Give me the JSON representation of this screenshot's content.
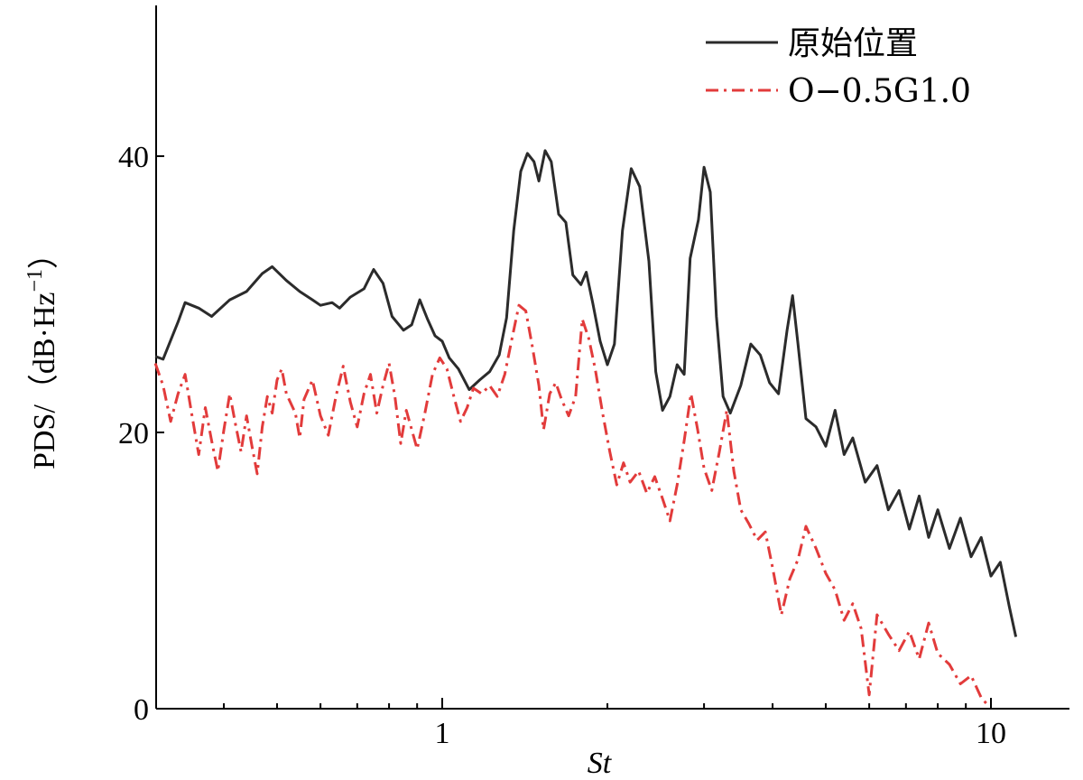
{
  "chart_data": {
    "type": "line",
    "title": "",
    "xlabel": "St",
    "ylabel": "PDS/（dB·Hz",
    "ylabel_sup": "−1",
    "ylabel_close": "）",
    "x_scale": "log",
    "xlim": [
      0.3,
      15
    ],
    "ylim": [
      0,
      40
    ],
    "x_ticks": [
      {
        "value": 1,
        "label": "1"
      },
      {
        "value": 10,
        "label": "10"
      }
    ],
    "y_ticks": [
      {
        "value": 0,
        "label": "0"
      },
      {
        "value": 20,
        "label": "20"
      },
      {
        "value": 40,
        "label": "40"
      }
    ],
    "grid": false,
    "legend_position": "top-right",
    "series": [
      {
        "name": "原始位置",
        "color": "#2b2b2b",
        "style": "solid",
        "points": [
          [
            0.3,
            25.5
          ],
          [
            0.31,
            25.3
          ],
          [
            0.33,
            28.0
          ],
          [
            0.34,
            29.4
          ],
          [
            0.36,
            29.0
          ],
          [
            0.38,
            28.4
          ],
          [
            0.41,
            29.6
          ],
          [
            0.44,
            30.2
          ],
          [
            0.47,
            31.5
          ],
          [
            0.49,
            32.0
          ],
          [
            0.52,
            31.0
          ],
          [
            0.55,
            30.2
          ],
          [
            0.58,
            29.6
          ],
          [
            0.6,
            29.2
          ],
          [
            0.63,
            29.4
          ],
          [
            0.65,
            29.0
          ],
          [
            0.68,
            29.8
          ],
          [
            0.72,
            30.4
          ],
          [
            0.75,
            31.8
          ],
          [
            0.78,
            30.8
          ],
          [
            0.81,
            28.4
          ],
          [
            0.85,
            27.4
          ],
          [
            0.88,
            27.8
          ],
          [
            0.91,
            29.6
          ],
          [
            0.94,
            28.2
          ],
          [
            0.97,
            27.0
          ],
          [
            1.0,
            26.6
          ],
          [
            1.03,
            25.4
          ],
          [
            1.07,
            24.6
          ],
          [
            1.12,
            23.1
          ],
          [
            1.17,
            23.8
          ],
          [
            1.22,
            24.4
          ],
          [
            1.27,
            25.6
          ],
          [
            1.31,
            28.3
          ],
          [
            1.35,
            34.6
          ],
          [
            1.39,
            38.9
          ],
          [
            1.43,
            40.2
          ],
          [
            1.47,
            39.6
          ],
          [
            1.5,
            38.2
          ],
          [
            1.54,
            40.4
          ],
          [
            1.58,
            39.6
          ],
          [
            1.63,
            35.8
          ],
          [
            1.68,
            35.2
          ],
          [
            1.73,
            31.4
          ],
          [
            1.79,
            30.7
          ],
          [
            1.83,
            31.6
          ],
          [
            1.88,
            29.4
          ],
          [
            1.94,
            26.6
          ],
          [
            2.0,
            24.9
          ],
          [
            2.06,
            26.4
          ],
          [
            2.13,
            34.6
          ],
          [
            2.21,
            39.1
          ],
          [
            2.29,
            37.8
          ],
          [
            2.38,
            32.4
          ],
          [
            2.45,
            24.4
          ],
          [
            2.52,
            21.6
          ],
          [
            2.6,
            22.6
          ],
          [
            2.68,
            24.9
          ],
          [
            2.76,
            24.2
          ],
          [
            2.83,
            32.6
          ],
          [
            2.93,
            35.4
          ],
          [
            3.0,
            39.2
          ],
          [
            3.08,
            37.4
          ],
          [
            3.16,
            28.4
          ],
          [
            3.25,
            22.6
          ],
          [
            3.35,
            21.4
          ],
          [
            3.5,
            23.4
          ],
          [
            3.65,
            26.4
          ],
          [
            3.8,
            25.6
          ],
          [
            3.95,
            23.6
          ],
          [
            4.1,
            22.8
          ],
          [
            4.25,
            27.4
          ],
          [
            4.35,
            29.9
          ],
          [
            4.45,
            26.4
          ],
          [
            4.6,
            21.0
          ],
          [
            4.8,
            20.4
          ],
          [
            5.0,
            19.0
          ],
          [
            5.2,
            21.6
          ],
          [
            5.4,
            18.4
          ],
          [
            5.6,
            19.6
          ],
          [
            5.9,
            16.4
          ],
          [
            6.2,
            17.6
          ],
          [
            6.5,
            14.4
          ],
          [
            6.8,
            15.8
          ],
          [
            7.1,
            13.0
          ],
          [
            7.4,
            15.4
          ],
          [
            7.7,
            12.4
          ],
          [
            8.0,
            14.4
          ],
          [
            8.4,
            11.6
          ],
          [
            8.8,
            13.8
          ],
          [
            9.2,
            11.0
          ],
          [
            9.6,
            12.4
          ],
          [
            10.0,
            9.6
          ],
          [
            10.4,
            10.6
          ],
          [
            10.8,
            7.4
          ],
          [
            11.1,
            5.2
          ]
        ]
      },
      {
        "name": "O−0.5G1.0",
        "color": "#e23b3b",
        "style": "dashdot",
        "points": [
          [
            0.3,
            25.0
          ],
          [
            0.31,
            23.4
          ],
          [
            0.32,
            20.8
          ],
          [
            0.33,
            22.8
          ],
          [
            0.34,
            24.2
          ],
          [
            0.35,
            21.2
          ],
          [
            0.36,
            18.4
          ],
          [
            0.37,
            21.8
          ],
          [
            0.38,
            19.4
          ],
          [
            0.39,
            17.2
          ],
          [
            0.4,
            20.2
          ],
          [
            0.41,
            22.8
          ],
          [
            0.42,
            20.6
          ],
          [
            0.43,
            18.6
          ],
          [
            0.44,
            21.2
          ],
          [
            0.45,
            19.0
          ],
          [
            0.46,
            17.0
          ],
          [
            0.47,
            20.4
          ],
          [
            0.48,
            22.6
          ],
          [
            0.49,
            21.4
          ],
          [
            0.5,
            23.8
          ],
          [
            0.51,
            24.6
          ],
          [
            0.52,
            22.8
          ],
          [
            0.54,
            21.4
          ],
          [
            0.55,
            19.6
          ],
          [
            0.56,
            22.4
          ],
          [
            0.58,
            23.8
          ],
          [
            0.6,
            21.2
          ],
          [
            0.62,
            19.8
          ],
          [
            0.64,
            22.6
          ],
          [
            0.66,
            24.8
          ],
          [
            0.68,
            22.2
          ],
          [
            0.7,
            20.4
          ],
          [
            0.72,
            22.8
          ],
          [
            0.74,
            24.2
          ],
          [
            0.76,
            21.4
          ],
          [
            0.78,
            23.4
          ],
          [
            0.8,
            25.0
          ],
          [
            0.82,
            22.6
          ],
          [
            0.84,
            19.2
          ],
          [
            0.86,
            21.6
          ],
          [
            0.88,
            20.2
          ],
          [
            0.9,
            18.8
          ],
          [
            0.93,
            21.4
          ],
          [
            0.96,
            24.2
          ],
          [
            0.99,
            25.4
          ],
          [
            1.02,
            24.6
          ],
          [
            1.05,
            22.6
          ],
          [
            1.08,
            20.8
          ],
          [
            1.11,
            21.8
          ],
          [
            1.14,
            23.2
          ],
          [
            1.18,
            22.8
          ],
          [
            1.22,
            23.4
          ],
          [
            1.26,
            22.6
          ],
          [
            1.3,
            24.2
          ],
          [
            1.34,
            26.8
          ],
          [
            1.38,
            29.2
          ],
          [
            1.42,
            28.8
          ],
          [
            1.46,
            26.2
          ],
          [
            1.5,
            23.4
          ],
          [
            1.53,
            20.2
          ],
          [
            1.57,
            22.8
          ],
          [
            1.61,
            23.6
          ],
          [
            1.65,
            22.4
          ],
          [
            1.7,
            21.2
          ],
          [
            1.75,
            22.6
          ],
          [
            1.8,
            28.2
          ],
          [
            1.85,
            26.8
          ],
          [
            1.9,
            24.6
          ],
          [
            1.96,
            21.4
          ],
          [
            2.02,
            18.6
          ],
          [
            2.08,
            16.2
          ],
          [
            2.14,
            17.8
          ],
          [
            2.2,
            16.4
          ],
          [
            2.28,
            17.2
          ],
          [
            2.36,
            15.6
          ],
          [
            2.44,
            16.8
          ],
          [
            2.52,
            15.2
          ],
          [
            2.6,
            13.6
          ],
          [
            2.68,
            16.2
          ],
          [
            2.76,
            19.4
          ],
          [
            2.84,
            22.8
          ],
          [
            2.92,
            20.2
          ],
          [
            3.0,
            17.4
          ],
          [
            3.1,
            15.8
          ],
          [
            3.2,
            18.6
          ],
          [
            3.3,
            21.6
          ],
          [
            3.4,
            17.2
          ],
          [
            3.5,
            14.4
          ],
          [
            3.62,
            13.4
          ],
          [
            3.75,
            12.2
          ],
          [
            3.88,
            12.8
          ],
          [
            4.0,
            10.2
          ],
          [
            4.15,
            6.8
          ],
          [
            4.3,
            9.4
          ],
          [
            4.45,
            10.8
          ],
          [
            4.6,
            13.2
          ],
          [
            4.8,
            11.6
          ],
          [
            5.0,
            9.8
          ],
          [
            5.2,
            8.6
          ],
          [
            5.4,
            6.4
          ],
          [
            5.6,
            7.6
          ],
          [
            5.8,
            5.8
          ],
          [
            6.0,
            1.0
          ],
          [
            6.2,
            6.8
          ],
          [
            6.5,
            5.4
          ],
          [
            6.8,
            4.2
          ],
          [
            7.1,
            5.6
          ],
          [
            7.4,
            3.6
          ],
          [
            7.7,
            6.2
          ],
          [
            8.0,
            4.0
          ],
          [
            8.4,
            3.2
          ],
          [
            8.8,
            1.8
          ],
          [
            9.2,
            2.4
          ],
          [
            9.6,
            0.8
          ],
          [
            9.9,
            0.2
          ]
        ]
      }
    ]
  }
}
